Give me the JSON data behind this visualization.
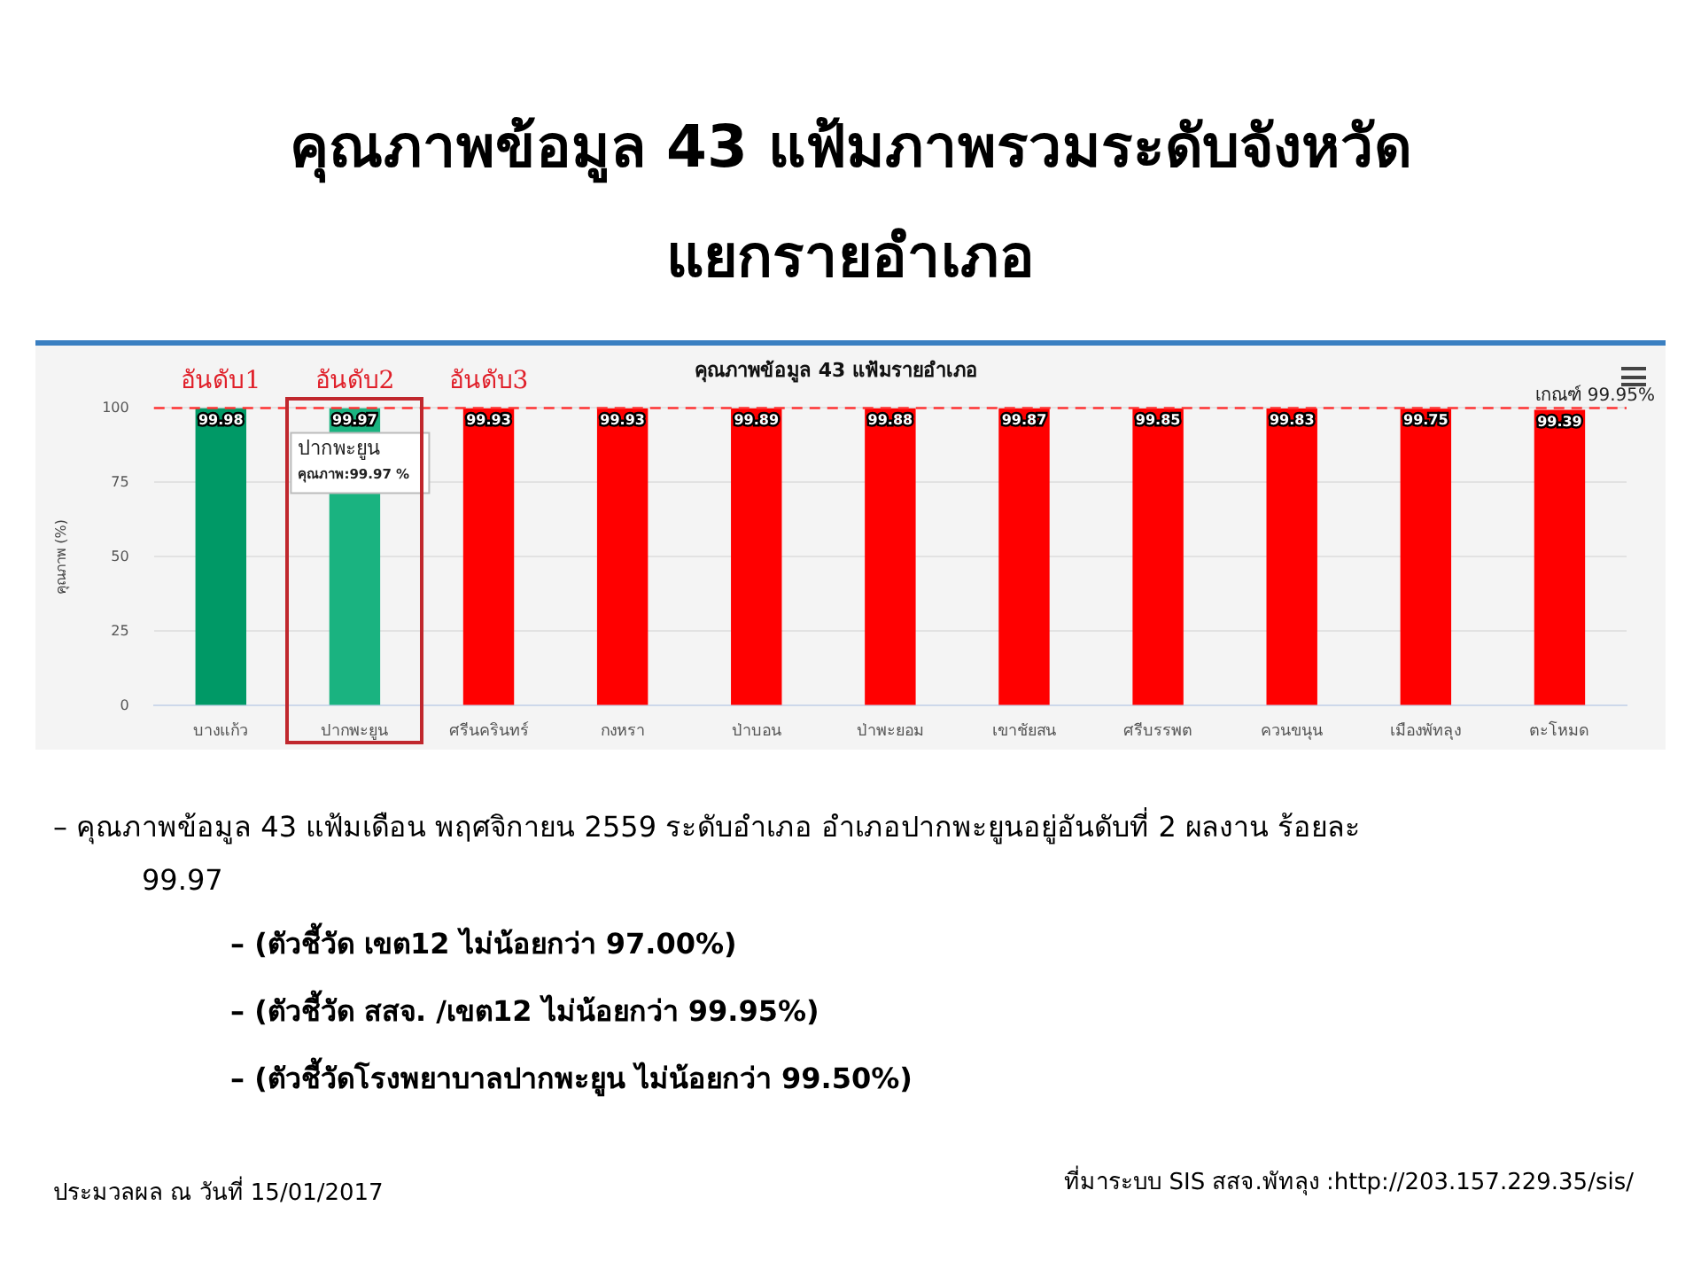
{
  "chart_data": {
    "type": "bar",
    "title": "คุณภาพข้อมูล 43 แฟ้มภาพรวมระดับจังหวัด แยกรายอำเภอ",
    "subtitle": "คุณภาพข้อมูล 43 แฟ้มรายอำเภอ",
    "ylabel": "คุณภาพ (%)",
    "categories": [
      "บางแก้ว",
      "ปากพะยูน",
      "ศรีนครินทร์",
      "กงหรา",
      "ป่าบอน",
      "ป่าพะยอม",
      "เขาชัยสน",
      "ศรีบรรพต",
      "ควนขนุน",
      "เมืองพัทลุง",
      "ตะโหมด"
    ],
    "values": [
      99.98,
      99.97,
      99.93,
      99.93,
      99.89,
      99.88,
      99.87,
      99.85,
      99.83,
      99.75,
      99.39
    ],
    "colors": [
      "#009966",
      "#1ab380",
      "#ff0000",
      "#ff0000",
      "#ff0000",
      "#ff0000",
      "#ff0000",
      "#ff0000",
      "#ff0000",
      "#ff0000",
      "#ff0000"
    ],
    "data_labels": true,
    "ylim": [
      0,
      100
    ],
    "yticks": [
      0,
      25,
      50,
      75,
      100
    ],
    "grid": "y",
    "ref_lines": [
      {
        "axis": "y",
        "value": 99.95,
        "label": "เกณฑ์ 99.95%",
        "color": "#ff3333",
        "line_style": "dashed"
      }
    ],
    "annotations": [
      "อันดับ1",
      "อันดับ2",
      "อันดับ3",
      "ปากพะยูน\nคุณภาพ:99.97 %",
      "– คุณภาพข้อมูล 43 แฟ้มเดือน พฤศจิกายน 2559 ระดับอำเภอ อำเภอปากพะยูนอยู่อันดับที่ 2 ผลงาน ร้อยละ 99.97",
      "– (ตัวชี้วัด เขต12 ไม่น้อยกว่า 97.00%)",
      "– (ตัวชี้วัด สสจ. /เขต12 ไม่น้อยกว่า 99.95%)",
      "– (ตัวชี้วัดโรงพยาบาลปากพะยูน ไม่น้อยกว่า 99.50%)",
      "ประมวลผล ณ วันที่ 15/01/2017",
      "ที่มาระบบ SIS สสจ.พัทลุง :http://203.157.229.35/sis/"
    ],
    "legend": false
  }
}
